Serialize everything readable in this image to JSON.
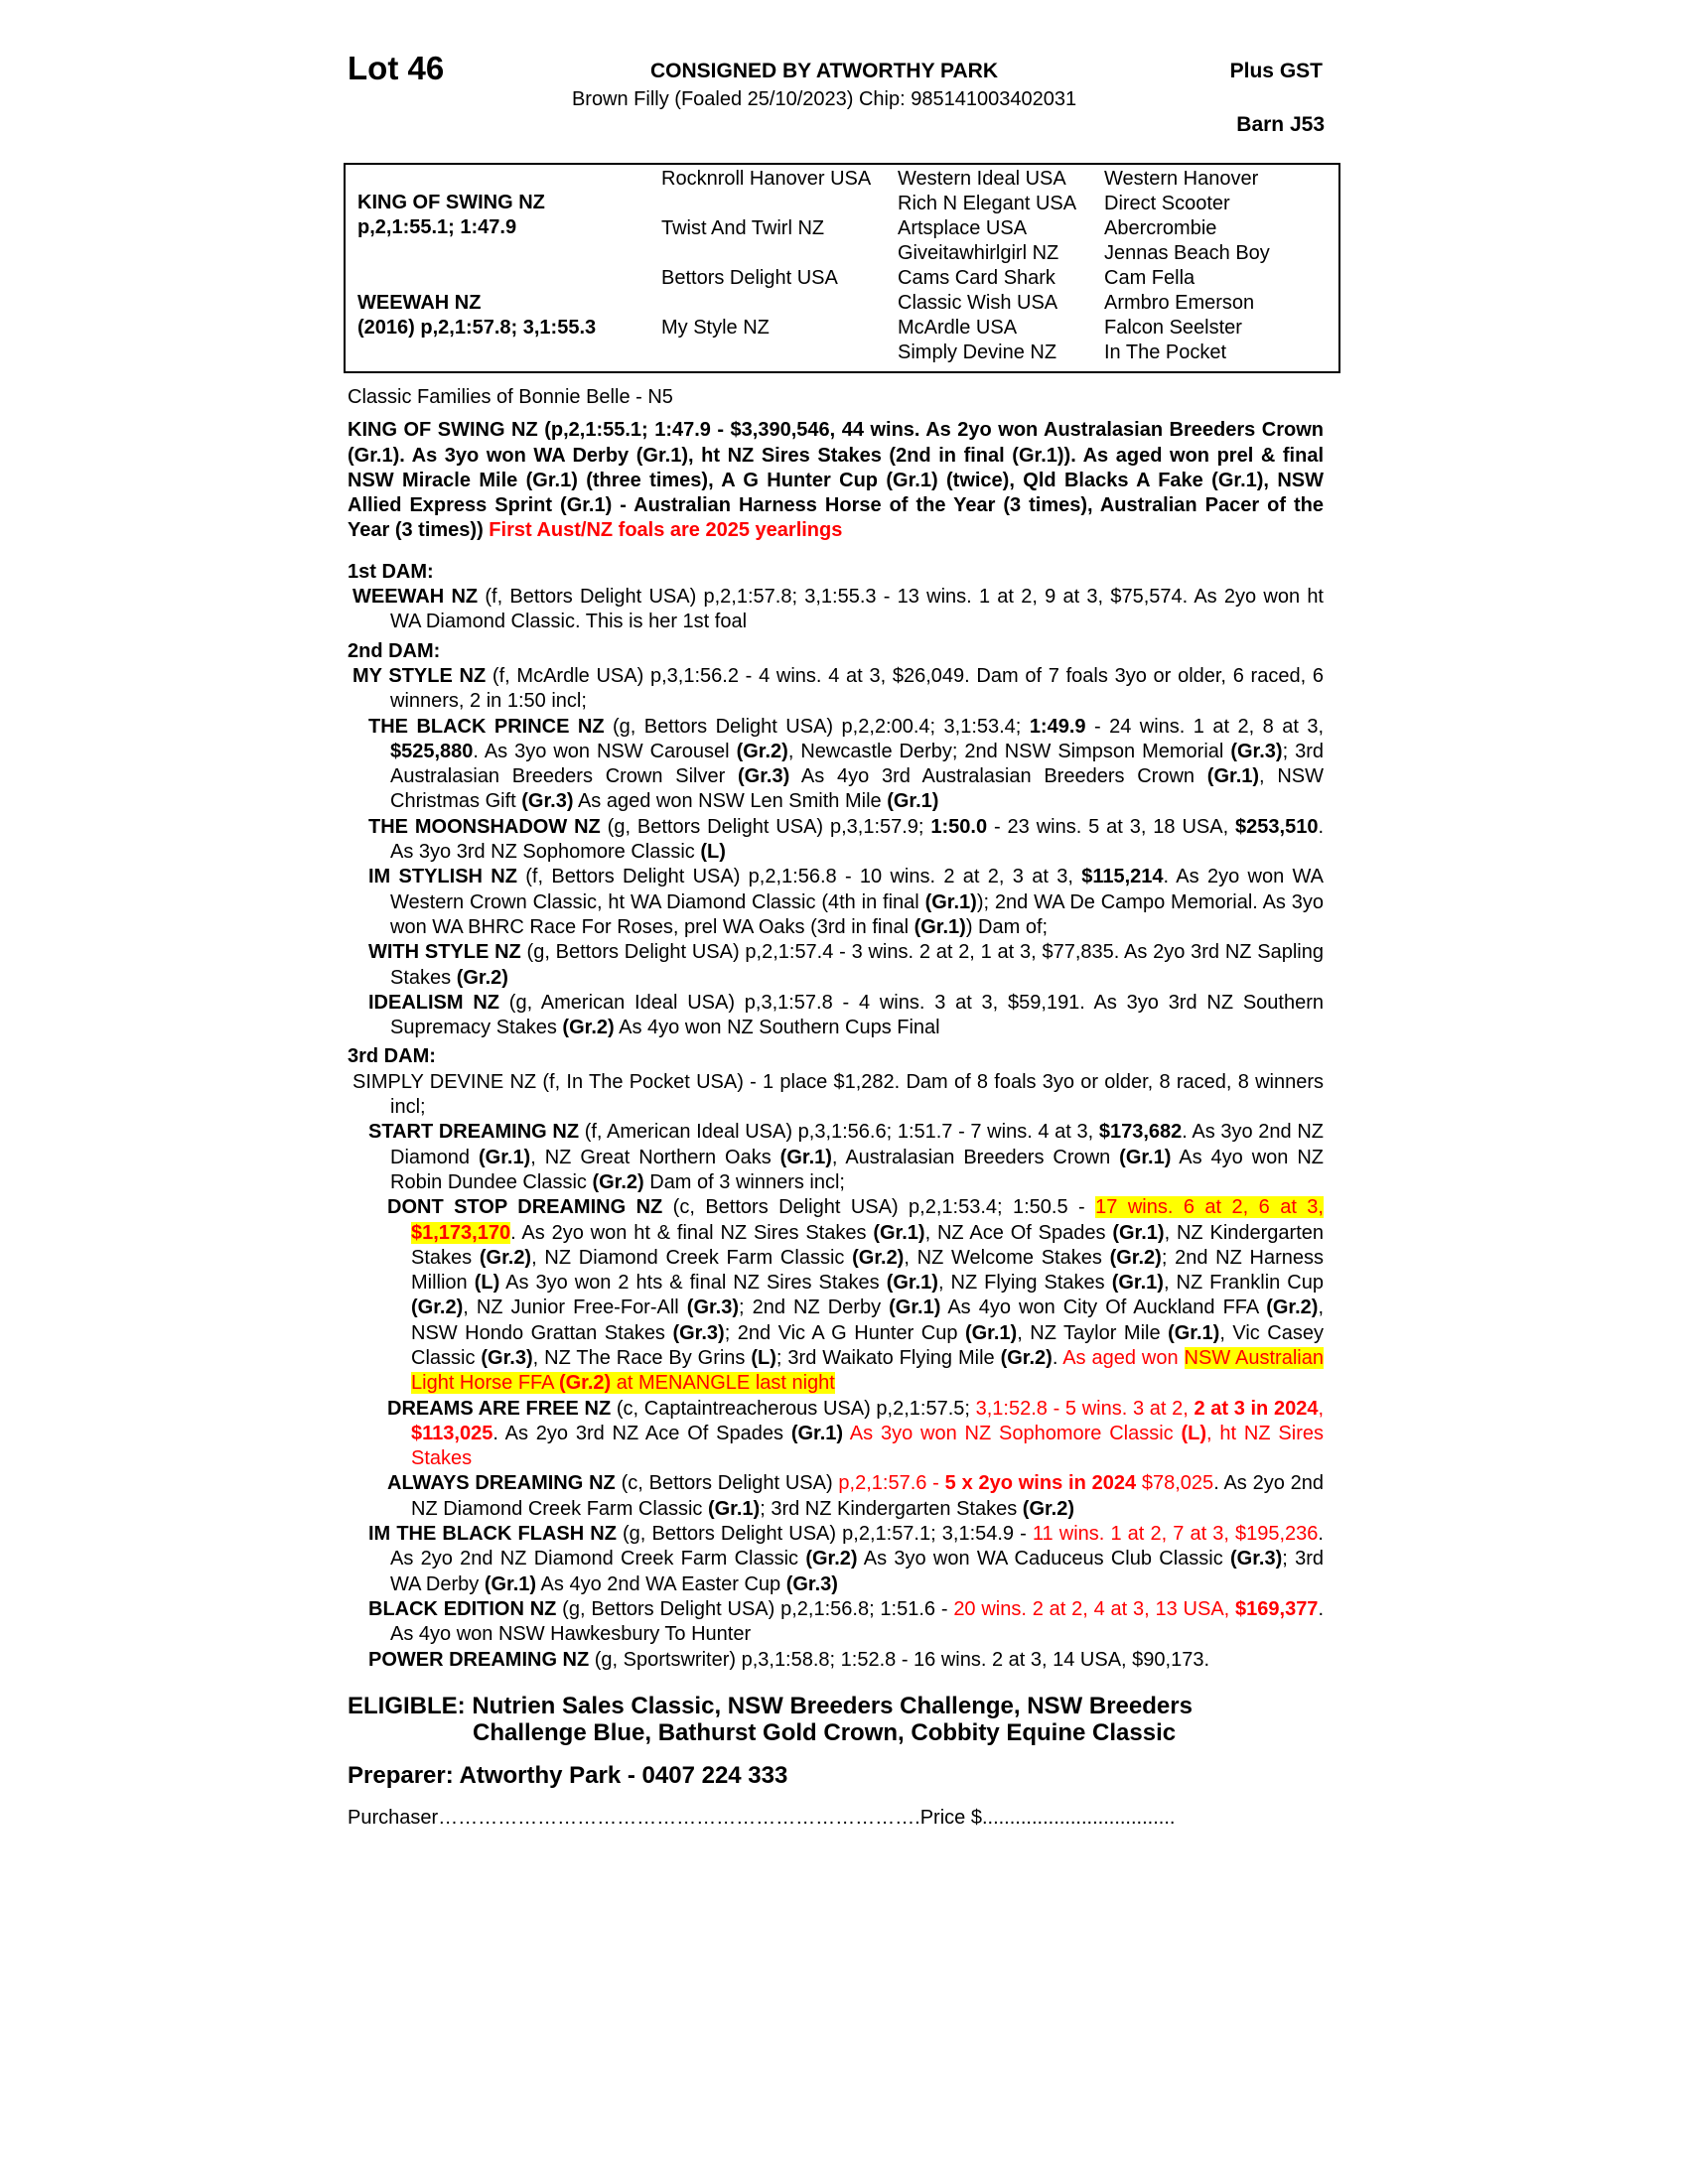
{
  "header": {
    "lot": "Lot 46",
    "consigned": "CONSIGNED BY ATWORTHY PARK",
    "description": "Brown Filly (Foaled 25/10/2023) Chip: 985141003402031",
    "gst": "Plus GST",
    "barn": "Barn J53"
  },
  "pedigree": {
    "sire": "KING OF SWING NZ",
    "sire_record": "p,2,1:55.1; 1:47.9",
    "dam": "WEEWAH NZ",
    "dam_record": "(2016) p,2,1:57.8; 3,1:55.3",
    "gen2": [
      "Rocknroll Hanover USA",
      "Twist And Twirl NZ",
      "Bettors Delight USA",
      "My Style NZ"
    ],
    "gen3": [
      "Western Ideal USA",
      "Rich N Elegant USA",
      "Artsplace USA",
      "Giveitawhirlgirl NZ",
      "Cams Card Shark",
      "Classic Wish USA",
      "McArdle USA",
      "Simply Devine NZ"
    ],
    "gen4": [
      "Western Hanover",
      "Direct Scooter",
      "Abercrombie",
      "Jennas Beach Boy",
      "Cam Fella",
      "Armbro Emerson",
      "Falcon Seelster",
      "In The Pocket"
    ]
  },
  "family": "Classic Families of Bonnie Belle - N5",
  "paragraphs": [
    {
      "cls": "sire",
      "segs": [
        {
          "t": "KING OF SWING NZ (p,2,1:55.1; 1:47.9 - $3,390,546, 44 wins. As 2yo won Australasian Breeders Crown (Gr.1). As 3yo won WA Derby (Gr.1), ht NZ Sires Stakes (2nd in final (Gr.1)). As aged won prel & final NSW Miracle Mile (Gr.1) (three times), A G Hunter Cup (Gr.1) (twice), Qld Blacks A Fake (Gr.1), NSW Allied Express Sprint (Gr.1) - Australian Harness Horse of the Year (3 times), Australian Pacer of the Year (3 times)) "
        },
        {
          "t": "First Aust/NZ foals are 2025 yearlings",
          "r": 1
        }
      ]
    },
    {
      "cls": "damh",
      "segs": [
        {
          "t": "1st DAM:"
        }
      ]
    },
    {
      "cls": "l0",
      "segs": [
        {
          "t": "WEEWAH NZ",
          "b": 1
        },
        {
          "t": " (f, Bettors Delight USA) p,2,1:57.8; 3,1:55.3 - 13 wins. 1 at 2, 9 at 3, $75,574. As 2yo won ht WA Diamond Classic. This is her 1st foal"
        }
      ]
    },
    {
      "cls": "damh",
      "segs": [
        {
          "t": "2nd DAM:"
        }
      ]
    },
    {
      "cls": "l0",
      "segs": [
        {
          "t": "MY STYLE NZ",
          "b": 1
        },
        {
          "t": " (f, McArdle USA) p,3,1:56.2 - 4 wins. 4 at 3, $26,049. Dam of 7 foals 3yo or older, 6 raced, 6 winners, 2 in 1:50 incl;"
        }
      ]
    },
    {
      "cls": "l1",
      "segs": [
        {
          "t": "THE BLACK PRINCE NZ",
          "b": 1
        },
        {
          "t": " (g, Bettors Delight USA) p,2,2:00.4; 3,1:53.4; "
        },
        {
          "t": "1:49.9",
          "b": 1
        },
        {
          "t": " - 24 wins. 1 at 2, 8 at 3, "
        },
        {
          "t": "$525,880",
          "b": 1
        },
        {
          "t": ". As 3yo won NSW Carousel "
        },
        {
          "t": "(Gr.2)",
          "b": 1
        },
        {
          "t": ", Newcastle Derby; 2nd NSW Simpson Memorial "
        },
        {
          "t": "(Gr.3)",
          "b": 1
        },
        {
          "t": "; 3rd Australasian Breeders Crown Silver "
        },
        {
          "t": "(Gr.3)",
          "b": 1
        },
        {
          "t": " As 4yo 3rd Australasian Breeders Crown "
        },
        {
          "t": "(Gr.1)",
          "b": 1
        },
        {
          "t": ", NSW Christmas Gift "
        },
        {
          "t": "(Gr.3)",
          "b": 1
        },
        {
          "t": " As aged won NSW Len Smith Mile "
        },
        {
          "t": "(Gr.1)",
          "b": 1
        }
      ]
    },
    {
      "cls": "l1",
      "segs": [
        {
          "t": "THE MOONSHADOW NZ",
          "b": 1
        },
        {
          "t": " (g, Bettors Delight USA) p,3,1:57.9; "
        },
        {
          "t": "1:50.0",
          "b": 1
        },
        {
          "t": " - 23 wins. 5 at 3, 18 USA, "
        },
        {
          "t": "$253,510",
          "b": 1
        },
        {
          "t": ". As 3yo 3rd NZ Sophomore Classic "
        },
        {
          "t": "(L)",
          "b": 1
        }
      ]
    },
    {
      "cls": "l1",
      "segs": [
        {
          "t": "IM STYLISH NZ",
          "b": 1
        },
        {
          "t": " (f, Bettors Delight USA) p,2,1:56.8 - 10 wins. 2 at 2, 3 at 3, "
        },
        {
          "t": "$115,214",
          "b": 1
        },
        {
          "t": ". As 2yo won WA Western Crown Classic, ht WA Diamond Classic (4th in final "
        },
        {
          "t": "(Gr.1)",
          "b": 1
        },
        {
          "t": "); 2nd WA De Campo Memorial. As 3yo won WA BHRC Race For Roses, prel WA Oaks (3rd in final "
        },
        {
          "t": "(Gr.1)",
          "b": 1
        },
        {
          "t": ") Dam of;"
        }
      ]
    },
    {
      "cls": "l1",
      "segs": [
        {
          "t": "WITH STYLE NZ",
          "b": 1
        },
        {
          "t": " (g, Bettors Delight USA) p,2,1:57.4 - 3 wins. 2 at 2, 1 at 3, $77,835. As 2yo 3rd NZ Sapling Stakes "
        },
        {
          "t": "(Gr.2)",
          "b": 1
        }
      ]
    },
    {
      "cls": "l1",
      "segs": [
        {
          "t": "IDEALISM NZ",
          "b": 1
        },
        {
          "t": " (g, American Ideal USA) p,3,1:57.8 - 4 wins. 3 at 3, $59,191. As 3yo 3rd NZ Southern Supremacy Stakes "
        },
        {
          "t": "(Gr.2)",
          "b": 1
        },
        {
          "t": " As 4yo won NZ Southern Cups Final"
        }
      ]
    },
    {
      "cls": "damh",
      "segs": [
        {
          "t": "3rd DAM:"
        }
      ]
    },
    {
      "cls": "l0",
      "segs": [
        {
          "t": "SIMPLY DEVINE NZ (f, In The Pocket USA) - 1 place $1,282. Dam of 8 foals 3yo or older, 8 raced, 8 winners incl;"
        }
      ]
    },
    {
      "cls": "l1",
      "segs": [
        {
          "t": "START DREAMING NZ",
          "b": 1
        },
        {
          "t": " (f, American Ideal USA) p,3,1:56.6; 1:51.7 - 7 wins. 4 at 3, "
        },
        {
          "t": "$173,682",
          "b": 1
        },
        {
          "t": ". As 3yo 2nd NZ Diamond "
        },
        {
          "t": "(Gr.1)",
          "b": 1
        },
        {
          "t": ", NZ Great Northern Oaks "
        },
        {
          "t": "(Gr.1)",
          "b": 1
        },
        {
          "t": ", Australasian Breeders Crown "
        },
        {
          "t": "(Gr.1)",
          "b": 1
        },
        {
          "t": " As 4yo won NZ Robin Dundee Classic "
        },
        {
          "t": "(Gr.2)",
          "b": 1
        },
        {
          "t": " Dam of 3 winners incl;"
        }
      ]
    },
    {
      "cls": "l2",
      "segs": [
        {
          "t": "DONT STOP DREAMING NZ",
          "b": 1
        },
        {
          "t": " (c, Bettors Delight USA) p,2,1:53.4; 1:50.5 - "
        },
        {
          "t": "17 wins. 6 at 2, 6 at 3,",
          "r": 1,
          "h": 1
        },
        {
          "t": " "
        },
        {
          "t": "$1,173,170",
          "r": 1,
          "h": 1,
          "b": 1
        },
        {
          "t": ". As 2yo won ht & final NZ Sires Stakes "
        },
        {
          "t": "(Gr.1)",
          "b": 1
        },
        {
          "t": ", NZ Ace Of Spades "
        },
        {
          "t": "(Gr.1)",
          "b": 1
        },
        {
          "t": ", NZ Kindergarten Stakes "
        },
        {
          "t": "(Gr.2)",
          "b": 1
        },
        {
          "t": ", NZ Diamond Creek Farm Classic "
        },
        {
          "t": "(Gr.2)",
          "b": 1
        },
        {
          "t": ", NZ Welcome Stakes "
        },
        {
          "t": "(Gr.2)",
          "b": 1
        },
        {
          "t": "; 2nd NZ Harness Million "
        },
        {
          "t": "(L)",
          "b": 1
        },
        {
          "t": " As 3yo won 2 hts & final NZ Sires Stakes "
        },
        {
          "t": "(Gr.1)",
          "b": 1
        },
        {
          "t": ", NZ Flying Stakes "
        },
        {
          "t": "(Gr.1)",
          "b": 1
        },
        {
          "t": ", NZ Franklin Cup "
        },
        {
          "t": "(Gr.2)",
          "b": 1
        },
        {
          "t": ", NZ Junior Free-For-All "
        },
        {
          "t": "(Gr.3)",
          "b": 1
        },
        {
          "t": "; 2nd NZ Derby "
        },
        {
          "t": "(Gr.1)",
          "b": 1
        },
        {
          "t": " As 4yo won City Of Auckland FFA "
        },
        {
          "t": "(Gr.2)",
          "b": 1
        },
        {
          "t": ", NSW Hondo Grattan Stakes "
        },
        {
          "t": "(Gr.3)",
          "b": 1
        },
        {
          "t": "; 2nd Vic A G Hunter Cup "
        },
        {
          "t": "(Gr.1)",
          "b": 1
        },
        {
          "t": ", NZ Taylor Mile "
        },
        {
          "t": "(Gr.1)",
          "b": 1
        },
        {
          "t": ", Vic Casey Classic "
        },
        {
          "t": "(Gr.3)",
          "b": 1
        },
        {
          "t": ", NZ The Race By Grins "
        },
        {
          "t": "(L)",
          "b": 1
        },
        {
          "t": "; 3rd Waikato Flying Mile "
        },
        {
          "t": "(Gr.2)",
          "b": 1
        },
        {
          "t": ". "
        },
        {
          "t": "As aged won ",
          "r": 1
        },
        {
          "t": "NSW Australian Light Horse FFA ",
          "r": 1,
          "h": 1
        },
        {
          "t": "(Gr.2)",
          "r": 1,
          "h": 1,
          "b": 1
        },
        {
          "t": " at MENANGLE last night",
          "r": 1,
          "h": 1
        }
      ]
    },
    {
      "cls": "l2",
      "segs": [
        {
          "t": "DREAMS ARE FREE NZ",
          "b": 1
        },
        {
          "t": " (c, Captaintreacherous USA) p,2,1:57.5; "
        },
        {
          "t": "3,1:52.8 - 5 wins. 3 at 2, ",
          "r": 1
        },
        {
          "t": "2 at 3 in 2024",
          "r": 1,
          "b": 1
        },
        {
          "t": ", ",
          "r": 1
        },
        {
          "t": "$113,025",
          "r": 1,
          "b": 1
        },
        {
          "t": ". As 2yo 3rd NZ Ace Of Spades "
        },
        {
          "t": "(Gr.1)",
          "b": 1
        },
        {
          "t": " "
        },
        {
          "t": "As 3yo won NZ Sophomore Classic ",
          "r": 1
        },
        {
          "t": "(L)",
          "r": 1,
          "b": 1
        },
        {
          "t": ", ht NZ Sires Stakes",
          "r": 1
        }
      ]
    },
    {
      "cls": "l2",
      "segs": [
        {
          "t": "ALWAYS DREAMING NZ",
          "b": 1
        },
        {
          "t": " (c, Bettors Delight USA) "
        },
        {
          "t": "p,2,1:57.6 - ",
          "r": 1
        },
        {
          "t": "5 x 2yo wins in 2024",
          "r": 1,
          "b": 1
        },
        {
          "t": " $78,025",
          "r": 1
        },
        {
          "t": ". As 2yo 2nd NZ Diamond Creek Farm Classic "
        },
        {
          "t": "(Gr.1)",
          "b": 1
        },
        {
          "t": "; 3rd NZ Kindergarten Stakes "
        },
        {
          "t": "(Gr.2)",
          "b": 1
        }
      ]
    },
    {
      "cls": "l1",
      "segs": [
        {
          "t": "IM THE BLACK FLASH NZ",
          "b": 1
        },
        {
          "t": " (g, Bettors Delight USA) p,2,1:57.1; 3,1:54.9 - "
        },
        {
          "t": "11 wins. 1 at 2, 7 at 3, $195,236",
          "r": 1
        },
        {
          "t": ". As 2yo 2nd NZ Diamond Creek Farm Classic "
        },
        {
          "t": "(Gr.2)",
          "b": 1
        },
        {
          "t": " As 3yo won WA Caduceus Club Classic "
        },
        {
          "t": "(Gr.3)",
          "b": 1
        },
        {
          "t": "; 3rd WA Derby "
        },
        {
          "t": "(Gr.1)",
          "b": 1
        },
        {
          "t": " As 4yo 2nd WA Easter Cup "
        },
        {
          "t": "(Gr.3)",
          "b": 1
        }
      ]
    },
    {
      "cls": "l1",
      "segs": [
        {
          "t": "BLACK EDITION NZ",
          "b": 1
        },
        {
          "t": " (g, Bettors Delight USA) p,2,1:56.8; 1:51.6 - "
        },
        {
          "t": "20 wins. 2 at 2, 4 at 3, 13 USA, ",
          "r": 1
        },
        {
          "t": "$169,377",
          "r": 1,
          "b": 1
        },
        {
          "t": ". As 4yo won NSW Hawkesbury To Hunter"
        }
      ]
    },
    {
      "cls": "l1",
      "segs": [
        {
          "t": "POWER DREAMING NZ",
          "b": 1
        },
        {
          "t": " (g, Sportswriter) p,3,1:58.8; 1:52.8 - 16 wins. 2 at 3, 14 USA, $90,173."
        }
      ]
    }
  ],
  "eligible": {
    "line1": "ELIGIBLE: Nutrien Sales Classic, NSW Breeders Challenge, NSW Breeders",
    "line2": "Challenge Blue, Bathurst Gold Crown, Cobbity Equine Classic"
  },
  "preparer": "Preparer: Atworthy Park - 0407 224 333",
  "purchaser": "Purchaser……………………………………………………………….Price $...................................",
  "colors": {
    "red": "#ff0000",
    "highlight": "#ffff00"
  }
}
